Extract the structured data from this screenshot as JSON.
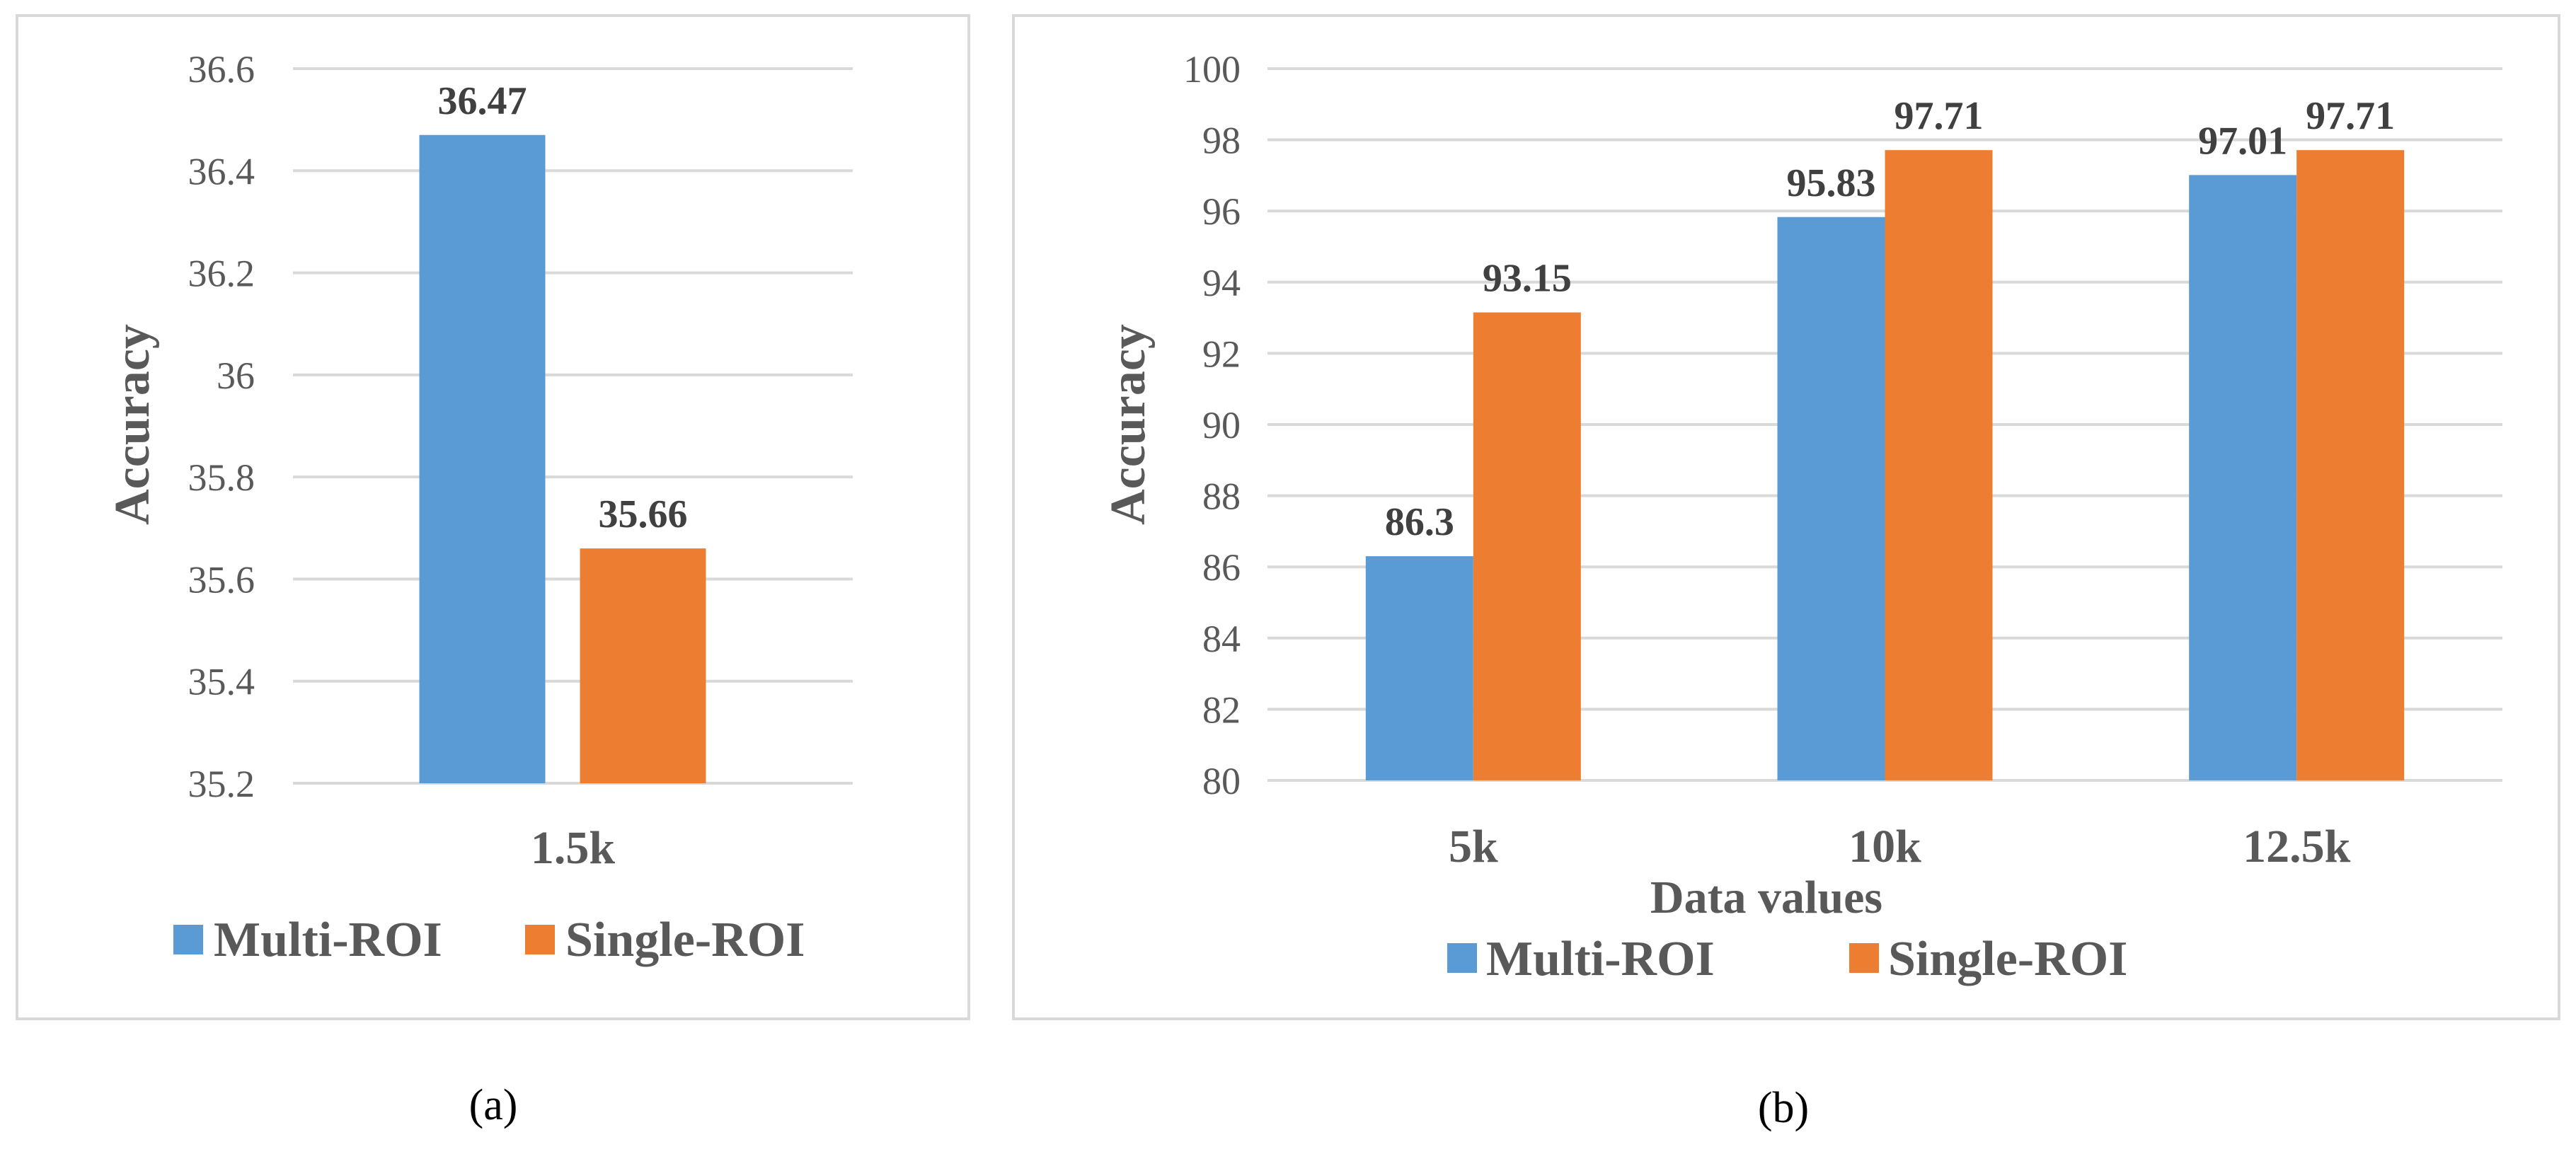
{
  "colors": {
    "multi": "#5b9bd5",
    "single": "#ed7d31"
  },
  "chart_data": [
    {
      "panel": "(a)",
      "type": "bar",
      "title": "",
      "xlabel": "",
      "ylabel": "Accuracy",
      "ylim": [
        35.2,
        36.6
      ],
      "ytick_step": 0.2,
      "yticks": [
        "35.2",
        "35.4",
        "35.6",
        "35.8",
        "36",
        "36.2",
        "36.4",
        "36.6"
      ],
      "categories": [
        "1.5k"
      ],
      "series": [
        {
          "name": "Multi-ROI",
          "values": [
            36.47
          ],
          "labels": [
            "36.47"
          ]
        },
        {
          "name": "Single-ROI",
          "values": [
            35.66
          ],
          "labels": [
            "35.66"
          ]
        }
      ],
      "legend_position": "bottom",
      "caption": "(a)"
    },
    {
      "panel": "(b)",
      "type": "bar",
      "title": "",
      "xlabel": "Data values",
      "ylabel": "Accuracy",
      "ylim": [
        80,
        100
      ],
      "ytick_step": 2,
      "yticks": [
        "80",
        "82",
        "84",
        "86",
        "88",
        "90",
        "92",
        "94",
        "96",
        "98",
        "100"
      ],
      "categories": [
        "5k",
        "10k",
        "12.5k"
      ],
      "series": [
        {
          "name": "Multi-ROI",
          "values": [
            86.3,
            95.83,
            97.01
          ],
          "labels": [
            "86.3",
            "95.83",
            "97.01"
          ]
        },
        {
          "name": "Single-ROI",
          "values": [
            93.15,
            97.71,
            97.71
          ],
          "labels": [
            "93.15",
            "97.71",
            "97.71"
          ]
        }
      ],
      "legend_position": "bottom",
      "caption": "(b)"
    }
  ]
}
